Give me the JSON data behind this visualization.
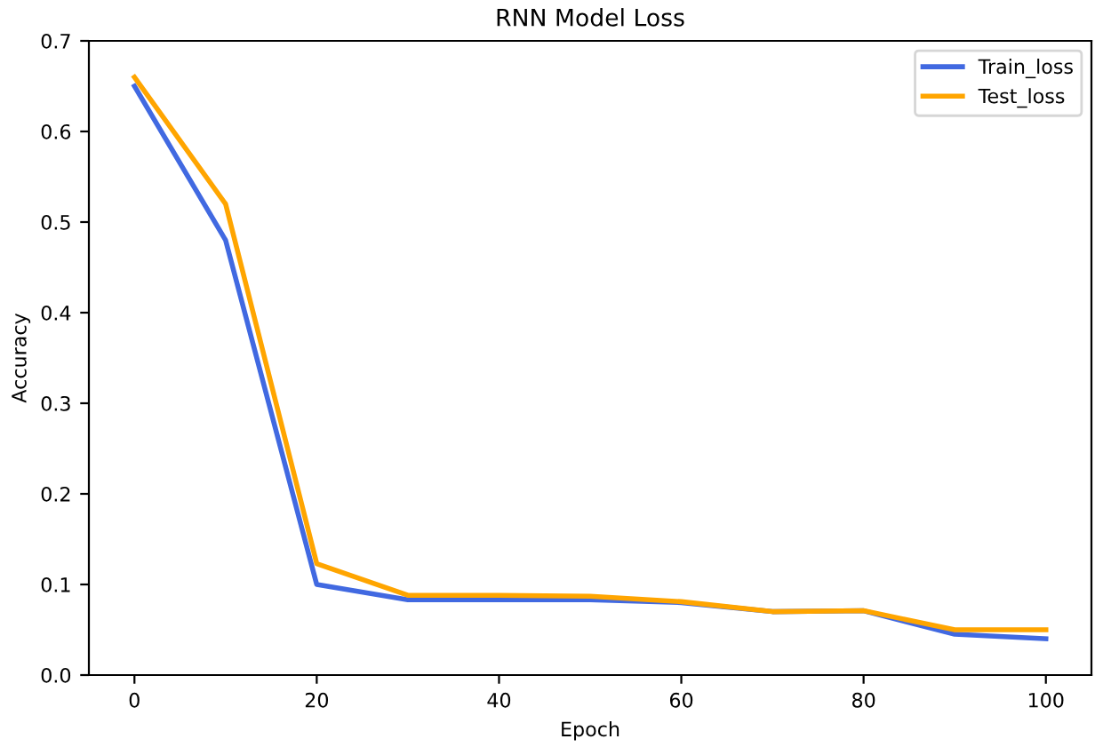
{
  "chart_data": {
    "type": "line",
    "title": "RNN Model Loss",
    "xlabel": "Epoch",
    "ylabel": "Accuracy",
    "x": [
      0,
      10,
      20,
      30,
      40,
      50,
      60,
      70,
      80,
      90,
      100
    ],
    "series": [
      {
        "name": "Train_loss",
        "color": "#4169e1",
        "values": [
          0.65,
          0.48,
          0.1,
          0.083,
          0.083,
          0.083,
          0.08,
          0.07,
          0.071,
          0.045,
          0.04
        ]
      },
      {
        "name": "Test_loss",
        "color": "#ffa500",
        "values": [
          0.66,
          0.52,
          0.123,
          0.088,
          0.088,
          0.087,
          0.081,
          0.07,
          0.071,
          0.05,
          0.05
        ]
      }
    ],
    "xlim": [
      -5,
      105
    ],
    "xticks": [
      0,
      20,
      40,
      60,
      80,
      100
    ],
    "ylim": [
      0,
      0.7
    ],
    "yticks": [
      {
        "value": 0,
        "label": "0.0"
      },
      0.1,
      0.2,
      0.3,
      0.4,
      0.5,
      0.6,
      0.7
    ],
    "legend": "top right"
  }
}
